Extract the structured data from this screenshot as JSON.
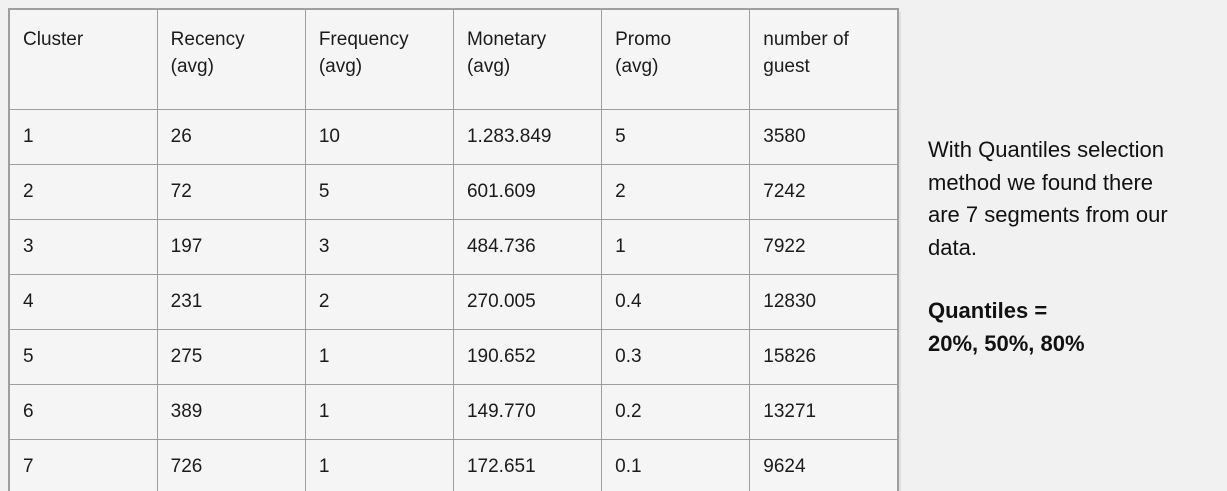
{
  "colors": {
    "page-bg": "#f1f1f1",
    "cell-bg": "#f5f5f5",
    "border": "#9e9e9e",
    "text": "#1b1b1b"
  },
  "table": {
    "headers": [
      [
        "Cluster"
      ],
      [
        "Recency",
        "(avg)"
      ],
      [
        "Frequency",
        "(avg)"
      ],
      [
        "Monetary",
        "(avg)"
      ],
      [
        "Promo",
        "(avg)"
      ],
      [
        "number of",
        "guest"
      ]
    ],
    "rows": [
      [
        "1",
        "26",
        "10",
        "1.283.849",
        "5",
        "3580"
      ],
      [
        "2",
        "72",
        "5",
        "601.609",
        "2",
        "7242"
      ],
      [
        "3",
        "197",
        "3",
        "484.736",
        "1",
        "7922"
      ],
      [
        "4",
        "231",
        "2",
        "270.005",
        "0.4",
        "12830"
      ],
      [
        "5",
        "275",
        "1",
        "190.652",
        "0.3",
        "15826"
      ],
      [
        "6",
        "389",
        "1",
        "149.770",
        "0.2",
        "13271"
      ],
      [
        "7",
        "726",
        "1",
        "172.651",
        "0.1",
        "9624"
      ]
    ]
  },
  "side_note": {
    "paragraph_lines": [
      "With Quantiles selection",
      "method we found there",
      "are 7 segments from our",
      "data."
    ],
    "quantiles_lines": [
      "Quantiles =",
      "20%, 50%, 80%"
    ]
  }
}
